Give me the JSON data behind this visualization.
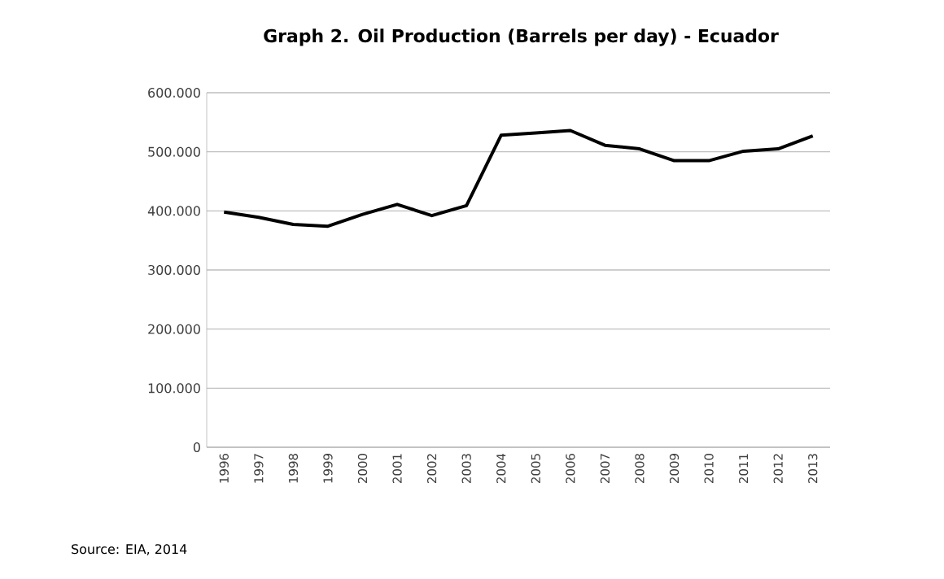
{
  "chart_data": {
    "type": "line",
    "title": "Graph 2. Oil Production (Barrels per day) - Ecuador",
    "categories": [
      "1996",
      "1997",
      "1998",
      "1999",
      "2000",
      "2001",
      "2002",
      "2003",
      "2004",
      "2005",
      "2006",
      "2007",
      "2008",
      "2009",
      "2010",
      "2011",
      "2012",
      "2013"
    ],
    "series": [
      {
        "color": "#000000",
        "values": [
          398000,
          389000,
          377000,
          374000,
          394000,
          411000,
          392000,
          409000,
          528000,
          532000,
          536000,
          511000,
          505000,
          485000,
          485000,
          501000,
          505000,
          527000
        ]
      }
    ],
    "ylim": [
      0,
      600000
    ],
    "yticks": [
      0,
      {
        "value": 100000,
        "label": "100.000"
      },
      {
        "value": 200000,
        "label": "200.000"
      },
      {
        "value": 300000,
        "label": "300.000"
      },
      {
        "value": 400000,
        "label": "400.000"
      },
      {
        "value": 500000,
        "label": "500.000"
      },
      {
        "value": 600000,
        "label": "600.000"
      }
    ],
    "grid": "y",
    "marker": "none",
    "line_style": "solid",
    "annotations": [
      "Source: EIA, 2014"
    ]
  }
}
